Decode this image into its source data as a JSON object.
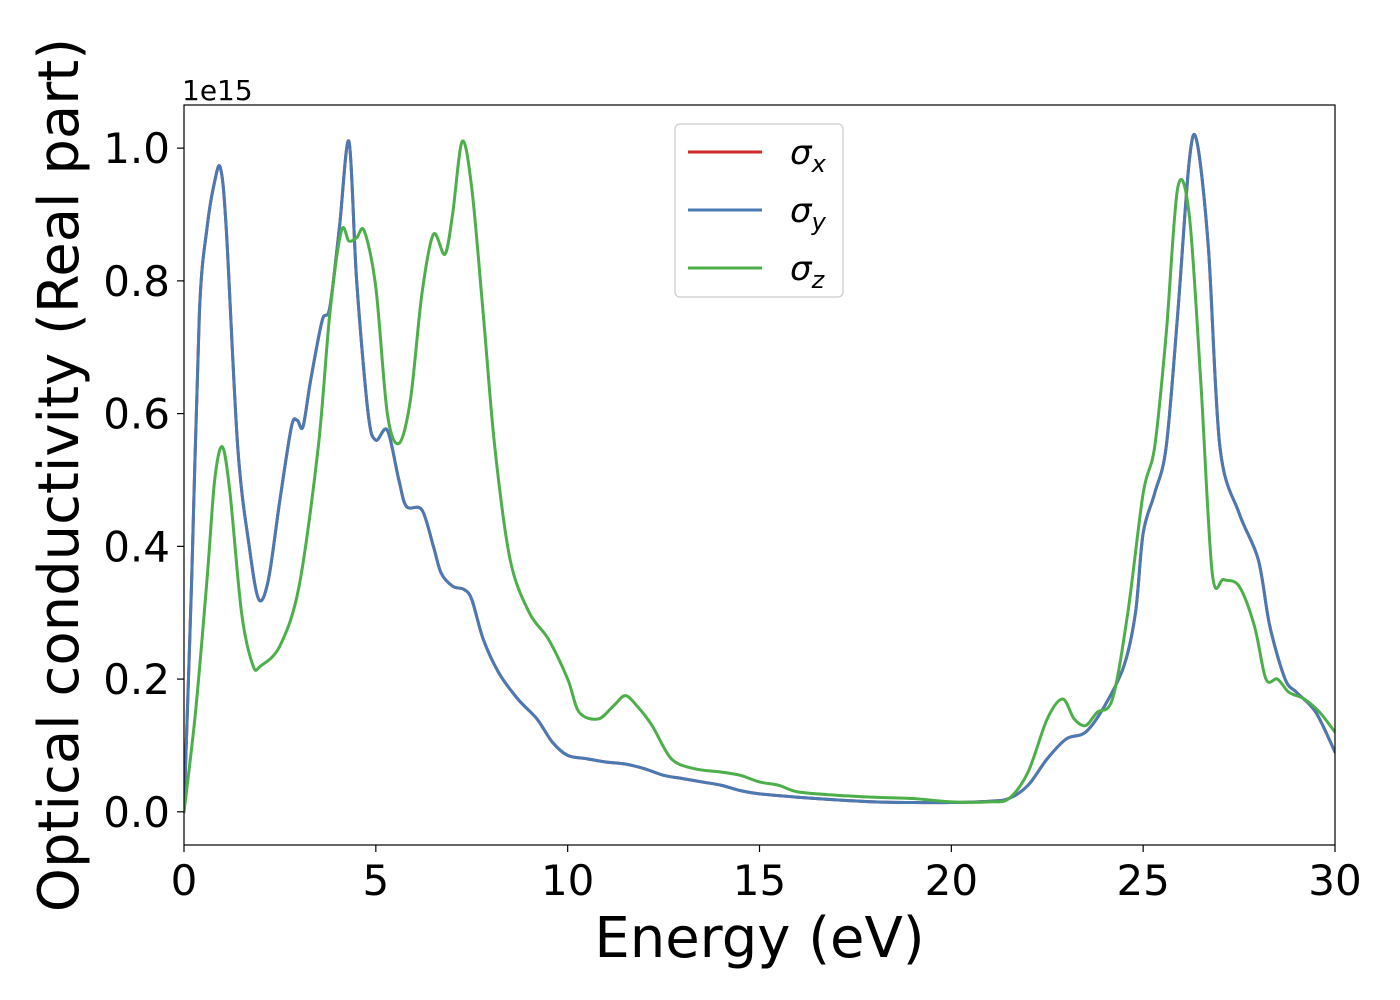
{
  "chart_data": {
    "type": "line",
    "xlabel": "Energy (eV)",
    "ylabel": "Optical conductivity (Real part)",
    "y_offset_label": "1e15",
    "xlim": [
      0,
      30
    ],
    "ylim": [
      -0.05,
      1.065
    ],
    "x_ticks": [
      0,
      5,
      10,
      15,
      20,
      25,
      30
    ],
    "y_ticks": [
      0.0,
      0.2,
      0.4,
      0.6,
      0.8,
      1.0
    ],
    "x_tick_labels": [
      "0",
      "5",
      "10",
      "15",
      "20",
      "25",
      "30"
    ],
    "y_tick_labels": [
      "0.0",
      "0.2",
      "0.4",
      "0.6",
      "0.8",
      "1.0"
    ],
    "grid": false,
    "legend_position": "top-center",
    "series": [
      {
        "name": "σ_x",
        "symbol": "σ",
        "subscript": "x",
        "color": "#d62728",
        "x": [
          0,
          0.2,
          0.4,
          0.6,
          0.8,
          0.95,
          1.1,
          1.4,
          1.7,
          1.95,
          2.2,
          2.5,
          2.8,
          2.95,
          3.1,
          3.3,
          3.6,
          3.8,
          4.05,
          4.3,
          4.5,
          4.8,
          5.0,
          5.3,
          5.6,
          5.8,
          6.2,
          6.5,
          6.7,
          7.0,
          7.3,
          7.5,
          7.8,
          8.2,
          8.7,
          9.2,
          9.6,
          10.0,
          10.5,
          11.0,
          11.5,
          12.0,
          12.5,
          13.0,
          13.5,
          14.0,
          14.5,
          15.0,
          16.0,
          17.0,
          18.0,
          19.0,
          20.0,
          21.0,
          21.5,
          22.0,
          22.5,
          23.0,
          23.5,
          24.0,
          24.5,
          24.8,
          25.0,
          25.3,
          25.6,
          25.9,
          26.2,
          26.4,
          26.7,
          27.0,
          27.5,
          28.0,
          28.3,
          28.7,
          29.0,
          29.5,
          30.0
        ],
        "values": [
          0.0,
          0.35,
          0.75,
          0.88,
          0.95,
          0.97,
          0.88,
          0.55,
          0.4,
          0.32,
          0.35,
          0.47,
          0.58,
          0.59,
          0.58,
          0.65,
          0.74,
          0.76,
          0.88,
          1.01,
          0.8,
          0.6,
          0.56,
          0.575,
          0.5,
          0.46,
          0.455,
          0.4,
          0.36,
          0.34,
          0.335,
          0.32,
          0.26,
          0.21,
          0.17,
          0.14,
          0.105,
          0.085,
          0.08,
          0.075,
          0.072,
          0.065,
          0.055,
          0.05,
          0.045,
          0.04,
          0.032,
          0.027,
          0.022,
          0.018,
          0.015,
          0.014,
          0.014,
          0.016,
          0.02,
          0.04,
          0.08,
          0.11,
          0.12,
          0.16,
          0.22,
          0.3,
          0.42,
          0.48,
          0.55,
          0.75,
          0.98,
          1.01,
          0.85,
          0.55,
          0.45,
          0.38,
          0.28,
          0.2,
          0.18,
          0.15,
          0.09
        ]
      },
      {
        "name": "σ_y",
        "symbol": "σ",
        "subscript": "y",
        "color": "#4a7ab3",
        "x": [
          0,
          0.2,
          0.4,
          0.6,
          0.8,
          0.95,
          1.1,
          1.4,
          1.7,
          1.95,
          2.2,
          2.5,
          2.8,
          2.95,
          3.1,
          3.3,
          3.6,
          3.8,
          4.05,
          4.3,
          4.5,
          4.8,
          5.0,
          5.3,
          5.6,
          5.8,
          6.2,
          6.5,
          6.7,
          7.0,
          7.3,
          7.5,
          7.8,
          8.2,
          8.7,
          9.2,
          9.6,
          10.0,
          10.5,
          11.0,
          11.5,
          12.0,
          12.5,
          13.0,
          13.5,
          14.0,
          14.5,
          15.0,
          16.0,
          17.0,
          18.0,
          19.0,
          20.0,
          21.0,
          21.5,
          22.0,
          22.5,
          23.0,
          23.5,
          24.0,
          24.5,
          24.8,
          25.0,
          25.3,
          25.6,
          25.9,
          26.2,
          26.4,
          26.7,
          27.0,
          27.5,
          28.0,
          28.3,
          28.7,
          29.0,
          29.5,
          30.0
        ],
        "values": [
          0.0,
          0.35,
          0.75,
          0.88,
          0.95,
          0.97,
          0.88,
          0.55,
          0.4,
          0.32,
          0.35,
          0.47,
          0.58,
          0.59,
          0.58,
          0.65,
          0.74,
          0.76,
          0.88,
          1.01,
          0.8,
          0.6,
          0.56,
          0.575,
          0.5,
          0.46,
          0.455,
          0.4,
          0.36,
          0.34,
          0.335,
          0.32,
          0.26,
          0.21,
          0.17,
          0.14,
          0.105,
          0.085,
          0.08,
          0.075,
          0.072,
          0.065,
          0.055,
          0.05,
          0.045,
          0.04,
          0.032,
          0.027,
          0.022,
          0.018,
          0.015,
          0.014,
          0.014,
          0.016,
          0.02,
          0.04,
          0.08,
          0.11,
          0.12,
          0.16,
          0.22,
          0.3,
          0.42,
          0.48,
          0.55,
          0.75,
          0.98,
          1.01,
          0.85,
          0.55,
          0.45,
          0.38,
          0.28,
          0.2,
          0.18,
          0.15,
          0.09
        ]
      },
      {
        "name": "σ_z",
        "symbol": "σ",
        "subscript": "z",
        "color": "#4daf4a",
        "x": [
          0,
          0.3,
          0.6,
          0.8,
          1.0,
          1.2,
          1.5,
          1.8,
          2.0,
          2.5,
          3.0,
          3.5,
          3.8,
          4.1,
          4.3,
          4.5,
          4.7,
          5.0,
          5.3,
          5.6,
          5.9,
          6.2,
          6.5,
          6.8,
          7.0,
          7.25,
          7.5,
          7.8,
          8.1,
          8.5,
          9.0,
          9.5,
          10.0,
          10.3,
          10.8,
          11.2,
          11.5,
          11.8,
          12.2,
          12.7,
          13.3,
          14.0,
          14.5,
          15.0,
          15.5,
          16.0,
          17.0,
          18.0,
          19.0,
          20.0,
          21.0,
          21.5,
          22.0,
          22.5,
          22.9,
          23.2,
          23.5,
          23.8,
          24.2,
          24.6,
          25.0,
          25.3,
          25.6,
          25.9,
          26.2,
          26.5,
          26.8,
          27.1,
          27.5,
          27.9,
          28.2,
          28.5,
          28.8,
          29.2,
          29.6,
          30.0
        ],
        "values": [
          0.0,
          0.15,
          0.35,
          0.5,
          0.55,
          0.48,
          0.3,
          0.22,
          0.22,
          0.25,
          0.34,
          0.55,
          0.75,
          0.875,
          0.86,
          0.865,
          0.875,
          0.79,
          0.6,
          0.555,
          0.62,
          0.78,
          0.87,
          0.84,
          0.9,
          1.01,
          0.94,
          0.75,
          0.55,
          0.38,
          0.3,
          0.26,
          0.2,
          0.15,
          0.14,
          0.16,
          0.175,
          0.16,
          0.13,
          0.08,
          0.065,
          0.06,
          0.055,
          0.045,
          0.04,
          0.03,
          0.025,
          0.022,
          0.02,
          0.015,
          0.015,
          0.02,
          0.06,
          0.14,
          0.17,
          0.14,
          0.13,
          0.15,
          0.17,
          0.3,
          0.48,
          0.55,
          0.72,
          0.94,
          0.9,
          0.65,
          0.36,
          0.35,
          0.34,
          0.28,
          0.2,
          0.2,
          0.18,
          0.17,
          0.15,
          0.12
        ]
      }
    ]
  }
}
